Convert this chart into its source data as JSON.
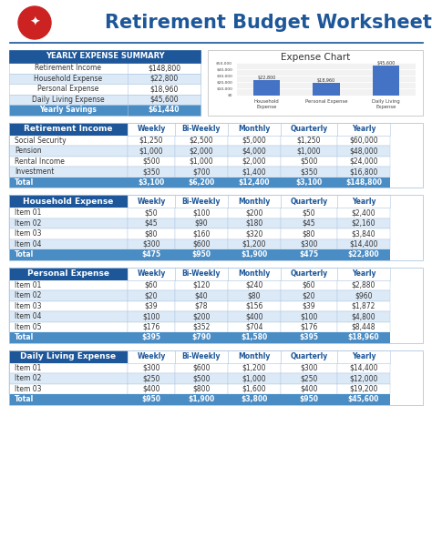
{
  "title": "Retirement Budget Worksheet",
  "summary_title": "YEARLY EXPENSE SUMMARY",
  "summary_rows": [
    [
      "Retirement Income",
      "$148,800"
    ],
    [
      "Household Expense",
      "$22,800"
    ],
    [
      "Personal Expense",
      "$18,960"
    ],
    [
      "Daily Living Expense",
      "$45,600"
    ],
    [
      "Yearly Savings",
      "$61,440"
    ]
  ],
  "chart_title": "Expense Chart",
  "chart_categories": [
    "Household\nExpense",
    "Personal Expense",
    "Daily Living\nExpense"
  ],
  "chart_values": [
    22800,
    18960,
    45600
  ],
  "chart_labels": [
    "$22,800",
    "$18,960",
    "$45,600"
  ],
  "chart_ytick_labels": [
    "$0",
    "$10,000",
    "$20,000",
    "$30,000",
    "$40,000",
    "$50,000"
  ],
  "sections": [
    {
      "title": "Retirement Income",
      "headers": [
        "",
        "Weekly",
        "Bi-Weekly",
        "Monthly",
        "Quarterly",
        "Yearly"
      ],
      "rows": [
        [
          "Social Security",
          "$1,250",
          "$2,500",
          "$5,000",
          "$1,250",
          "$60,000"
        ],
        [
          "Pension",
          "$1,000",
          "$2,000",
          "$4,000",
          "$1,000",
          "$48,000"
        ],
        [
          "Rental Income",
          "$500",
          "$1,000",
          "$2,000",
          "$500",
          "$24,000"
        ],
        [
          "Investment",
          "$350",
          "$700",
          "$1,400",
          "$350",
          "$16,800"
        ]
      ],
      "total": [
        "Total",
        "$3,100",
        "$6,200",
        "$12,400",
        "$3,100",
        "$148,800"
      ]
    },
    {
      "title": "Household Expense",
      "headers": [
        "",
        "Weekly",
        "Bi-Weekly",
        "Monthly",
        "Quarterly",
        "Yearly"
      ],
      "rows": [
        [
          "Item 01",
          "$50",
          "$100",
          "$200",
          "$50",
          "$2,400"
        ],
        [
          "Item 02",
          "$45",
          "$90",
          "$180",
          "$45",
          "$2,160"
        ],
        [
          "Item 03",
          "$80",
          "$160",
          "$320",
          "$80",
          "$3,840"
        ],
        [
          "Item 04",
          "$300",
          "$600",
          "$1,200",
          "$300",
          "$14,400"
        ]
      ],
      "total": [
        "Total",
        "$475",
        "$950",
        "$1,900",
        "$475",
        "$22,800"
      ]
    },
    {
      "title": "Personal Expense",
      "headers": [
        "",
        "Weekly",
        "Bi-Weekly",
        "Monthly",
        "Quarterly",
        "Yearly"
      ],
      "rows": [
        [
          "Item 01",
          "$60",
          "$120",
          "$240",
          "$60",
          "$2,880"
        ],
        [
          "Item 02",
          "$20",
          "$40",
          "$80",
          "$20",
          "$960"
        ],
        [
          "Item 03",
          "$39",
          "$78",
          "$156",
          "$39",
          "$1,872"
        ],
        [
          "Item 04",
          "$100",
          "$200",
          "$400",
          "$100",
          "$4,800"
        ],
        [
          "Item 05",
          "$176",
          "$352",
          "$704",
          "$176",
          "$8,448"
        ]
      ],
      "total": [
        "Total",
        "$395",
        "$790",
        "$1,580",
        "$395",
        "$18,960"
      ]
    },
    {
      "title": "Daily Living Expense",
      "headers": [
        "",
        "Weekly",
        "Bi-Weekly",
        "Monthly",
        "Quarterly",
        "Yearly"
      ],
      "rows": [
        [
          "Item 01",
          "$300",
          "$600",
          "$1,200",
          "$300",
          "$14,400"
        ],
        [
          "Item 02",
          "$250",
          "$500",
          "$1,000",
          "$250",
          "$12,000"
        ],
        [
          "Item 03",
          "$400",
          "$800",
          "$1,600",
          "$400",
          "$19,200"
        ]
      ],
      "total": [
        "Total",
        "$950",
        "$1,900",
        "$3,800",
        "$950",
        "$45,600"
      ]
    }
  ],
  "colors": {
    "header_bg": "#1E5799",
    "header_text": "#FFFFFF",
    "col_header_text": "#1E5799",
    "row_alt_bg": "#DCE9F7",
    "row_text": "#333333",
    "total_bg": "#4A8CC4",
    "total_text": "#FFFFFF",
    "summary_title_bg": "#1E5799",
    "summary_title_text": "#FFFFFF",
    "summary_savings_bg": "#4A8CC4",
    "summary_savings_text": "#FFFFFF",
    "summary_alt_bg": "#DCE9F7",
    "bar_color": "#4472C4",
    "title_color": "#1E5799",
    "border_color": "#B0C8E0",
    "line_color": "#1E5799",
    "background": "#FFFFFF",
    "chart_bg": "#F2F2F2"
  }
}
